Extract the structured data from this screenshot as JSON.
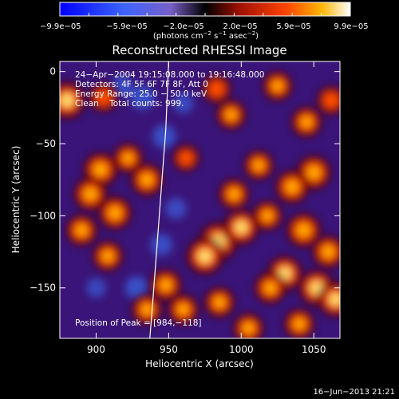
{
  "chart_data": {
    "type": "heatmap",
    "title": "Reconstructed RHESSI Image",
    "xlabel": "Heliocentric X (arcsec)",
    "ylabel": "Heliocentric Y (arcsec)",
    "xlim": [
      875,
      1068
    ],
    "ylim": [
      -185,
      7
    ],
    "xticks": [
      900,
      950,
      1000,
      1050
    ],
    "yticks": [
      0,
      -50,
      -100,
      -150
    ],
    "colorbar": {
      "ticks": [
        "−9.9e−05",
        "−5.9e−05",
        "−2.0e−05",
        "2.0e−05",
        "5.9e−05",
        "9.9e−05"
      ],
      "unit_main": "(photons cm",
      "unit_exp1": "−2",
      "unit_mid": " s",
      "unit_exp2": "−1",
      "unit_end": " asec",
      "unit_exp3": "−2",
      "unit_close": ")",
      "range": [
        -9.9e-05,
        9.9e-05
      ]
    },
    "annotations": {
      "time": "24−Apr−2004 19:15:08.000 to 19:16:48.000",
      "detectors": "Detectors: 4F 5F 6F 7F 8F, Att 0",
      "energy": "Energy Range: 25.0 − 50.0 keV",
      "clean": "Clean    Total counts: 999.",
      "peak": "Position of Peak = [984,−118]"
    },
    "peak": [
      984,
      -118
    ],
    "limb_points": [
      [
        950,
        7
      ],
      [
        948,
        -40
      ],
      [
        945,
        -80
      ],
      [
        942,
        -120
      ],
      [
        939,
        -160
      ],
      [
        937,
        -185
      ]
    ],
    "hot_spots": [
      [
        880,
        -20,
        0.9
      ],
      [
        903,
        -68,
        0.75
      ],
      [
        896,
        -85,
        0.7
      ],
      [
        913,
        -98,
        0.7
      ],
      [
        890,
        -110,
        0.6
      ],
      [
        908,
        -128,
        0.55
      ],
      [
        935,
        -75,
        0.65
      ],
      [
        922,
        -60,
        0.5
      ],
      [
        905,
        -18,
        0.45
      ],
      [
        935,
        -165,
        0.55
      ],
      [
        948,
        -148,
        0.6
      ],
      [
        960,
        -165,
        0.55
      ],
      [
        985,
        -160,
        0.55
      ],
      [
        993,
        -30,
        0.5
      ],
      [
        983,
        -12,
        0.45
      ],
      [
        1025,
        -10,
        0.5
      ],
      [
        1045,
        -35,
        0.55
      ],
      [
        1050,
        -70,
        0.75
      ],
      [
        1035,
        -80,
        0.7
      ],
      [
        1043,
        -110,
        0.75
      ],
      [
        1060,
        -125,
        0.65
      ],
      [
        1030,
        -140,
        0.8
      ],
      [
        1052,
        -150,
        0.85
      ],
      [
        1065,
        -158,
        0.8
      ],
      [
        1020,
        -150,
        0.6
      ],
      [
        984,
        -118,
        1.0
      ],
      [
        975,
        -128,
        0.9
      ],
      [
        1000,
        -108,
        0.8
      ],
      [
        995,
        -85,
        0.55
      ],
      [
        1012,
        -65,
        0.5
      ],
      [
        1040,
        -175,
        0.55
      ],
      [
        1005,
        -178,
        0.55
      ],
      [
        1018,
        -100,
        0.5
      ],
      [
        962,
        -60,
        0.35
      ],
      [
        1062,
        -20,
        0.45
      ]
    ],
    "cold_spots": [
      [
        932,
        -18,
        0.75
      ],
      [
        947,
        -45,
        0.7
      ],
      [
        928,
        -150,
        0.7
      ],
      [
        945,
        -120,
        0.6
      ],
      [
        918,
        -10,
        0.55
      ],
      [
        955,
        -95,
        0.5
      ],
      [
        900,
        -150,
        0.4
      ],
      [
        960,
        -22,
        0.45
      ]
    ]
  },
  "footer": {
    "date": "16−Jun−2013 21:21"
  }
}
